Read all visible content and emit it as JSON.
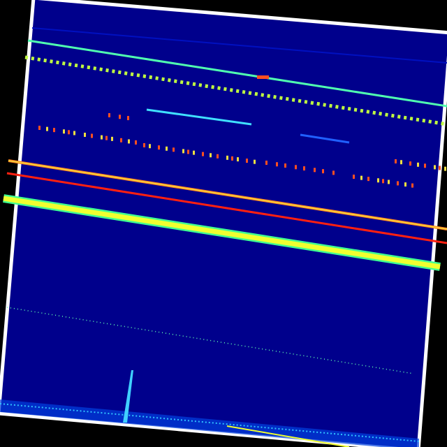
{
  "image": {
    "kind": "spectrogram-waterfall",
    "rotation_deg": 4.5,
    "colors": {
      "background": "#000000",
      "frame": "#ffffff",
      "field": "#00008c",
      "cyan": "#30e0ff",
      "green": "#60ff90",
      "yellow": "#f0ff30",
      "orange": "#ff9020",
      "red": "#ff2010"
    }
  }
}
